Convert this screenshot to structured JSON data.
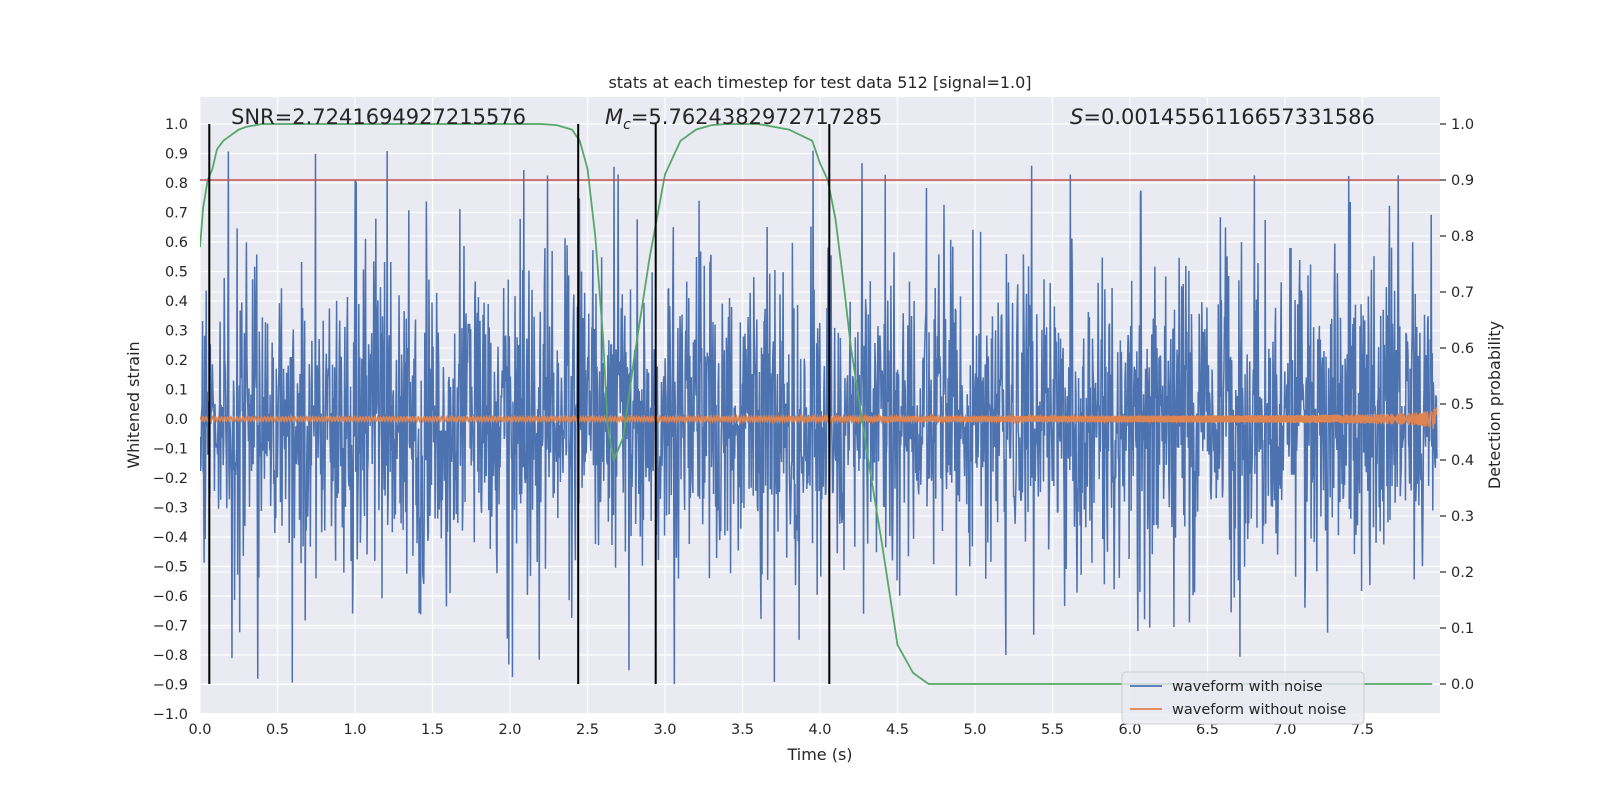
{
  "chart_data": {
    "type": "line",
    "title": "stats at each timestep for test data 512 [signal=1.0]",
    "xlabel": "Time (s)",
    "ylabel_left": "Whitened strain",
    "ylabel_right": "Detection probability",
    "xlim": [
      0.0,
      8.0
    ],
    "ylim_left": [
      -1.0,
      1.0
    ],
    "ylim_right": [
      -0.05,
      1.03
    ],
    "xticks": [
      0.0,
      0.5,
      1.0,
      1.5,
      2.0,
      2.5,
      3.0,
      3.5,
      4.0,
      4.5,
      5.0,
      5.5,
      6.0,
      6.5,
      7.0,
      7.5
    ],
    "xtick_labels": [
      "0.0",
      "0.5",
      "1.0",
      "1.5",
      "2.0",
      "2.5",
      "3.0",
      "3.5",
      "4.0",
      "4.5",
      "5.0",
      "5.5",
      "6.0",
      "6.5",
      "7.0",
      "7.5"
    ],
    "yticks_left": [
      -1.0,
      -0.9,
      -0.8,
      -0.7,
      -0.6,
      -0.5,
      -0.4,
      -0.3,
      -0.2,
      -0.1,
      0.0,
      0.1,
      0.2,
      0.3,
      0.4,
      0.5,
      0.6,
      0.7,
      0.8,
      0.9,
      1.0
    ],
    "ytick_labels_left": [
      "−1.0",
      "−0.9",
      "−0.8",
      "−0.7",
      "−0.6",
      "−0.5",
      "−0.4",
      "−0.3",
      "−0.2",
      "−0.1",
      "0.0",
      "0.1",
      "0.2",
      "0.3",
      "0.4",
      "0.5",
      "0.6",
      "0.7",
      "0.8",
      "0.9",
      "1.0"
    ],
    "yticks_right": [
      0.0,
      0.1,
      0.2,
      0.3,
      0.4,
      0.5,
      0.6,
      0.7,
      0.8,
      0.9,
      1.0
    ],
    "ytick_labels_right": [
      "0.0",
      "0.1",
      "0.2",
      "0.3",
      "0.4",
      "0.5",
      "0.6",
      "0.7",
      "0.8",
      "0.9",
      "1.0"
    ],
    "grid": true,
    "legend_position": "lower-right",
    "series": [
      {
        "name": "waveform with noise",
        "color": "#4c72b0",
        "axis": "left",
        "noise_amplitude_typical": 0.45,
        "noise_peak_max": 0.99
      },
      {
        "name": "waveform without noise",
        "color": "#dd8452",
        "axis": "left",
        "chirp": {
          "t_merge": 7.98,
          "amplitude_start": 0.008,
          "amplitude_end": 0.09
        }
      },
      {
        "color": "#55a868",
        "axis": "right",
        "x": [
          0.0,
          0.02,
          0.05,
          0.08,
          0.11,
          0.15,
          0.2,
          0.25,
          0.3,
          0.4,
          0.5,
          0.7,
          1.0,
          1.5,
          2.0,
          2.2,
          2.3,
          2.4,
          2.45,
          2.5,
          2.55,
          2.6,
          2.63,
          2.67,
          2.73,
          2.8,
          2.9,
          3.0,
          3.1,
          3.2,
          3.3,
          3.4,
          3.6,
          3.8,
          3.95,
          4.0,
          4.05,
          4.1,
          4.15,
          4.2,
          4.3,
          4.4,
          4.5,
          4.6,
          4.7,
          4.8,
          5.0,
          6.0,
          7.0,
          7.95
        ],
        "y": [
          0.78,
          0.85,
          0.9,
          0.92,
          0.955,
          0.97,
          0.98,
          0.99,
          0.995,
          1.0,
          1.0,
          1.0,
          1.0,
          1.0,
          1.0,
          1.0,
          0.998,
          0.99,
          0.97,
          0.92,
          0.8,
          0.62,
          0.46,
          0.4,
          0.44,
          0.58,
          0.76,
          0.91,
          0.97,
          0.99,
          0.998,
          1.0,
          1.0,
          0.99,
          0.97,
          0.93,
          0.9,
          0.83,
          0.72,
          0.6,
          0.42,
          0.25,
          0.07,
          0.02,
          0.0,
          0.0,
          0.0,
          0.0,
          0.0,
          0.0
        ]
      },
      {
        "color": "#c44e52",
        "axis": "right",
        "type": "hline",
        "y": 0.9
      }
    ],
    "vlines": [
      0.06,
      2.44,
      2.94,
      4.06
    ],
    "annotations": [
      {
        "text": "SNR=2.7241694927215576",
        "x": 0.2
      },
      {
        "text": "$M_c$=5.7624382972717285",
        "mathlabel": "M",
        "subscript": "c",
        "value": "=5.7624382972717285",
        "x": 2.6
      },
      {
        "text": "$S$=0.0014556116657331586",
        "mathlabel": "S",
        "value": "=0.0014556116657331586",
        "x": 5.6
      }
    ]
  }
}
